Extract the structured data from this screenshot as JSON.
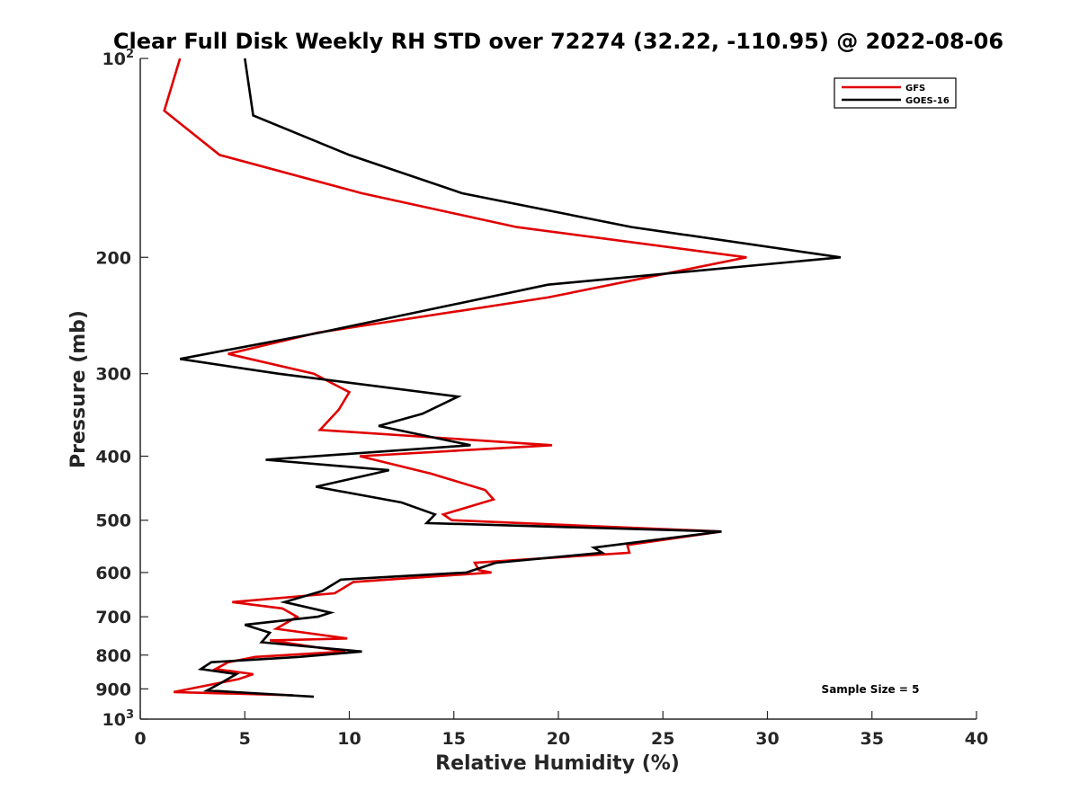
{
  "chart_data": {
    "type": "line",
    "title": "Clear Full Disk Weekly RH STD over 72274 (32.22, -110.95) @ 2022-08-06",
    "xlabel": "Relative Humidity (%)",
    "ylabel": "Pressure (mb)",
    "xlim": [
      0,
      40
    ],
    "ylim": [
      100,
      1000
    ],
    "yscale": "log",
    "yreversed": true,
    "x_ticks": [
      0,
      5,
      10,
      15,
      20,
      25,
      30,
      35,
      40
    ],
    "y_ticks": [
      {
        "value": 100,
        "label": "10",
        "sup": "2"
      },
      {
        "value": 200,
        "label": "200",
        "sup": ""
      },
      {
        "value": 300,
        "label": "300",
        "sup": ""
      },
      {
        "value": 400,
        "label": "400",
        "sup": ""
      },
      {
        "value": 500,
        "label": "500",
        "sup": ""
      },
      {
        "value": 600,
        "label": "600",
        "sup": ""
      },
      {
        "value": 700,
        "label": "700",
        "sup": ""
      },
      {
        "value": 800,
        "label": "800",
        "sup": ""
      },
      {
        "value": 900,
        "label": "900",
        "sup": ""
      },
      {
        "value": 1000,
        "label": "10",
        "sup": "3"
      }
    ],
    "grid": false,
    "legend_position": "top-right",
    "annotation": "Sample Size = 5",
    "series": [
      {
        "name": "GFS",
        "color": "#e00000",
        "points": [
          [
            1.9,
            100
          ],
          [
            1.15,
            120
          ],
          [
            3.8,
            140
          ],
          [
            10.6,
            160
          ],
          [
            18.0,
            180
          ],
          [
            29.0,
            200
          ],
          [
            19.5,
            230
          ],
          [
            8.5,
            260
          ],
          [
            4.2,
            280
          ],
          [
            8.3,
            300
          ],
          [
            10.0,
            320
          ],
          [
            9.5,
            340
          ],
          [
            8.6,
            365
          ],
          [
            19.7,
            385
          ],
          [
            10.5,
            400
          ],
          [
            13.9,
            425
          ],
          [
            16.5,
            450
          ],
          [
            16.9,
            465
          ],
          [
            14.5,
            490
          ],
          [
            14.9,
            500
          ],
          [
            27.8,
            520
          ],
          [
            23.3,
            545
          ],
          [
            23.4,
            560
          ],
          [
            16.0,
            580
          ],
          [
            16.2,
            595
          ],
          [
            16.8,
            600
          ],
          [
            10.2,
            620
          ],
          [
            9.3,
            645
          ],
          [
            4.4,
            665
          ],
          [
            6.8,
            680
          ],
          [
            7.5,
            700
          ],
          [
            6.5,
            730
          ],
          [
            9.9,
            755
          ],
          [
            6.2,
            760
          ],
          [
            9.8,
            790
          ],
          [
            5.5,
            805
          ],
          [
            4.2,
            820
          ],
          [
            3.6,
            840
          ],
          [
            5.4,
            855
          ],
          [
            4.7,
            870
          ],
          [
            1.6,
            910
          ],
          [
            7.3,
            920
          ]
        ]
      },
      {
        "name": "GOES-16",
        "color": "#000000",
        "points": [
          [
            5.0,
            100
          ],
          [
            5.4,
            122
          ],
          [
            10.0,
            140
          ],
          [
            15.4,
            160
          ],
          [
            23.5,
            180
          ],
          [
            33.5,
            200
          ],
          [
            19.5,
            220
          ],
          [
            8.6,
            260
          ],
          [
            1.9,
            285
          ],
          [
            6.6,
            300
          ],
          [
            15.2,
            325
          ],
          [
            13.5,
            345
          ],
          [
            11.4,
            360
          ],
          [
            15.8,
            385
          ],
          [
            6.0,
            405
          ],
          [
            11.9,
            420
          ],
          [
            8.4,
            445
          ],
          [
            12.5,
            470
          ],
          [
            14.1,
            490
          ],
          [
            13.7,
            505
          ],
          [
            27.8,
            520
          ],
          [
            21.7,
            550
          ],
          [
            22.1,
            560
          ],
          [
            17.0,
            580
          ],
          [
            15.6,
            600
          ],
          [
            9.6,
            615
          ],
          [
            8.7,
            640
          ],
          [
            6.9,
            665
          ],
          [
            9.1,
            690
          ],
          [
            8.5,
            700
          ],
          [
            5.0,
            720
          ],
          [
            6.2,
            740
          ],
          [
            5.8,
            765
          ],
          [
            10.6,
            790
          ],
          [
            7.6,
            805
          ],
          [
            3.4,
            820
          ],
          [
            2.9,
            840
          ],
          [
            4.6,
            855
          ],
          [
            3.9,
            880
          ],
          [
            3.2,
            905
          ],
          [
            8.3,
            925
          ]
        ]
      }
    ]
  }
}
